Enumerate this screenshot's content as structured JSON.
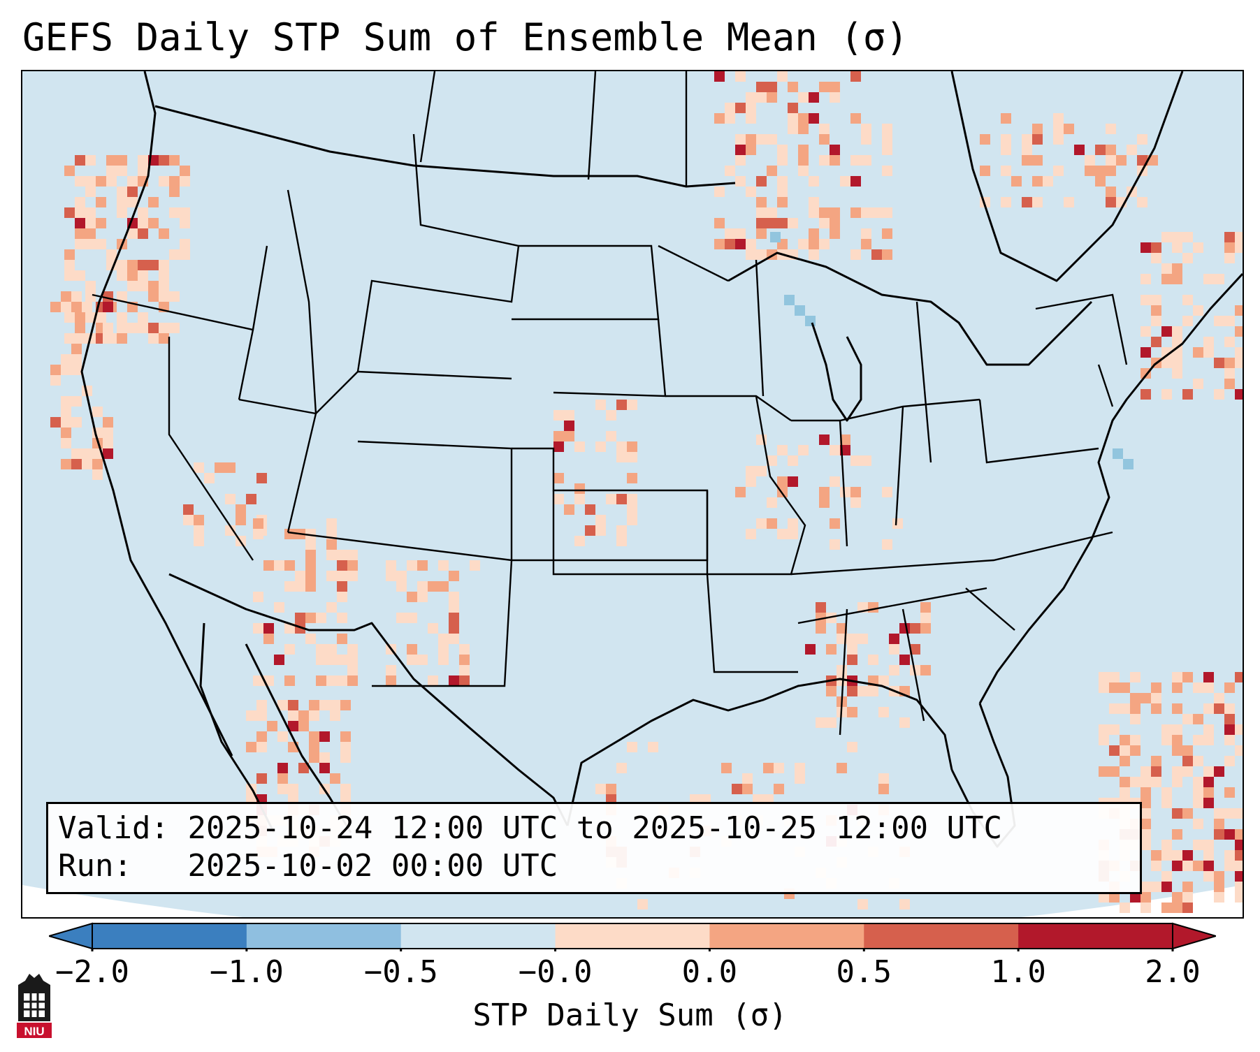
{
  "title": "GEFS Daily STP Sum of Ensemble Mean (σ)",
  "info": {
    "valid_label": "Valid:",
    "valid_value": "2025-10-24 12:00 UTC to 2025-10-25 12:00 UTC",
    "run_label": "Run:",
    "run_value": "2025-10-02 00:00 UTC"
  },
  "colorbar": {
    "label": "STP Daily Sum (σ)",
    "ticks": [
      "−2.0",
      "−1.0",
      "−0.5",
      "−0.0",
      "0.0",
      "0.5",
      "1.0",
      "2.0"
    ],
    "colors": [
      "#3b7fbf",
      "#8fbfe0",
      "#d1e5f0",
      "#f7f7f7",
      "#fddbc7",
      "#f4a582",
      "#d6604d",
      "#b2182b"
    ]
  },
  "map": {
    "projection": "Lambert conformal, CONUS",
    "background_color": "#d1e5f0",
    "outside_color": "#ffffff",
    "border_color": "#000000"
  },
  "logo": {
    "text": "NIU",
    "color": "#c8102e"
  }
}
